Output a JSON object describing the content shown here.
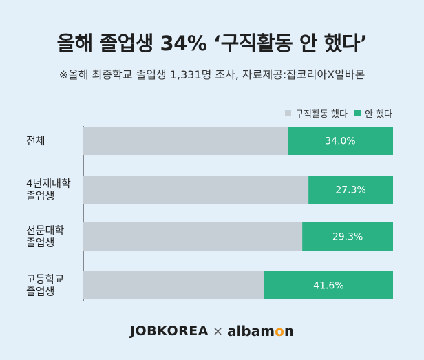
{
  "title": "올해 졸업생 34% ‘구직활동 안 했다’",
  "subtitle": "※올해 최종학교 졸업생 1,331명 조사, 자료제공:잡코리아X알바몬",
  "legend": [
    {
      "label": "구직활동 했다",
      "color": "#c6ced6"
    },
    {
      "label": "안 했다",
      "color": "#2ab184"
    }
  ],
  "chart_data": {
    "type": "bar",
    "orientation": "horizontal",
    "stacked": true,
    "categories": [
      [
        "전체"
      ],
      [
        "4년제대학",
        "졸업생"
      ],
      [
        "전문대학",
        "졸업생"
      ],
      [
        "고등학교",
        "졸업생"
      ]
    ],
    "series": [
      {
        "name": "구직활동 했다",
        "values": [
          66.0,
          72.7,
          70.7,
          58.4
        ],
        "color": "#c6ced6"
      },
      {
        "name": "안 했다",
        "values": [
          34.0,
          27.3,
          29.3,
          41.6
        ],
        "color": "#2ab184",
        "labels": [
          "34.0%",
          "27.3%",
          "29.3%",
          "41.6%"
        ]
      }
    ],
    "xlim": [
      0,
      100
    ],
    "legend_position": "top-right"
  },
  "footer": {
    "jobkorea": "JOBKOREA",
    "separator": "×",
    "albamon_prefix": "alba",
    "albamon_o": "o",
    "albamon_suffix": "n",
    "albamon_m": "m"
  }
}
